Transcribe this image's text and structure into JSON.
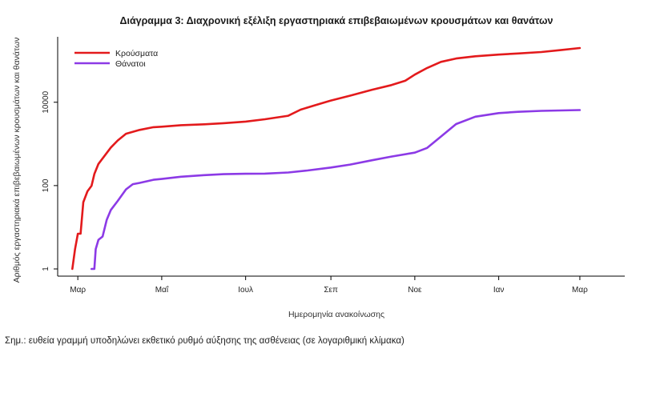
{
  "chart_data": {
    "type": "line",
    "title": "Διάγραμμα 3: Διαχρονική εξέλιξη εργαστηριακά επιβεβαιωμένων κρουσμάτων και θανάτων",
    "xlabel": "Ημερομηνία ανακοίνωσης",
    "ylabel": "Αριθμός εργαστηριακά επιβεβαιωμένων κρουσμάτων και θανάτων",
    "y_scale": "log",
    "ylim": [
      1,
      200000
    ],
    "y_ticks": [
      1,
      100,
      10000
    ],
    "y_tick_labels": [
      "1",
      "100",
      "10000"
    ],
    "xlim": [
      "2020-02-27",
      "2021-03-22"
    ],
    "x_ticks": [
      "2020-03-01",
      "2020-05-01",
      "2020-07-01",
      "2020-09-01",
      "2020-11-01",
      "2021-01-01",
      "2021-03-01"
    ],
    "x_tick_labels": [
      "Μαρ",
      "Μαΐ",
      "Ιουλ",
      "Σεπ",
      "Νοε",
      "Ιαν",
      "Μαρ"
    ],
    "grid": false,
    "legend_position": "top-left",
    "series": [
      {
        "name": "Κρούσματα",
        "color": "#e31a1c",
        "points": [
          [
            "2020-02-26",
            1
          ],
          [
            "2020-02-28",
            3
          ],
          [
            "2020-03-01",
            7
          ],
          [
            "2020-03-03",
            7
          ],
          [
            "2020-03-05",
            40
          ],
          [
            "2020-03-08",
            73
          ],
          [
            "2020-03-11",
            99
          ],
          [
            "2020-03-13",
            190
          ],
          [
            "2020-03-16",
            331
          ],
          [
            "2020-03-20",
            495
          ],
          [
            "2020-03-25",
            821
          ],
          [
            "2020-03-30",
            1212
          ],
          [
            "2020-04-05",
            1755
          ],
          [
            "2020-04-15",
            2170
          ],
          [
            "2020-04-25",
            2517
          ],
          [
            "2020-05-01",
            2591
          ],
          [
            "2020-05-15",
            2810
          ],
          [
            "2020-06-01",
            2952
          ],
          [
            "2020-06-15",
            3148
          ],
          [
            "2020-07-01",
            3432
          ],
          [
            "2020-07-15",
            3910
          ],
          [
            "2020-08-01",
            4737
          ],
          [
            "2020-08-10",
            6632
          ],
          [
            "2020-08-20",
            8381
          ],
          [
            "2020-09-01",
            10998
          ],
          [
            "2020-09-15",
            14400
          ],
          [
            "2020-10-01",
            20000
          ],
          [
            "2020-10-15",
            25802
          ],
          [
            "2020-10-25",
            32752
          ],
          [
            "2020-11-01",
            46000
          ],
          [
            "2020-11-10",
            66637
          ],
          [
            "2020-11-20",
            93000
          ],
          [
            "2020-12-01",
            112000
          ],
          [
            "2020-12-15",
            127000
          ],
          [
            "2021-01-01",
            139000
          ],
          [
            "2021-01-15",
            148000
          ],
          [
            "2021-02-01",
            160000
          ],
          [
            "2021-02-15",
            178000
          ],
          [
            "2021-03-01",
            200000
          ]
        ]
      },
      {
        "name": "Θάνατοι",
        "color": "#8c3ae6",
        "points": [
          [
            "2020-03-11",
            1
          ],
          [
            "2020-03-13",
            1
          ],
          [
            "2020-03-14",
            3
          ],
          [
            "2020-03-16",
            5
          ],
          [
            "2020-03-19",
            6
          ],
          [
            "2020-03-22",
            15
          ],
          [
            "2020-03-25",
            26
          ],
          [
            "2020-03-30",
            43
          ],
          [
            "2020-04-05",
            81
          ],
          [
            "2020-04-10",
            108
          ],
          [
            "2020-04-15",
            116
          ],
          [
            "2020-04-25",
            138
          ],
          [
            "2020-05-01",
            144
          ],
          [
            "2020-05-15",
            163
          ],
          [
            "2020-06-01",
            178
          ],
          [
            "2020-06-15",
            188
          ],
          [
            "2020-07-01",
            192
          ],
          [
            "2020-07-15",
            194
          ],
          [
            "2020-08-01",
            206
          ],
          [
            "2020-08-15",
            230
          ],
          [
            "2020-09-01",
            271
          ],
          [
            "2020-09-15",
            319
          ],
          [
            "2020-10-01",
            406
          ],
          [
            "2020-10-15",
            497
          ],
          [
            "2020-11-01",
            618
          ],
          [
            "2020-11-10",
            800
          ],
          [
            "2020-11-20",
            1500
          ],
          [
            "2020-12-01",
            3000
          ],
          [
            "2020-12-15",
            4500
          ],
          [
            "2021-01-01",
            5500
          ],
          [
            "2021-01-15",
            5900
          ],
          [
            "2021-02-01",
            6200
          ],
          [
            "2021-03-01",
            6500
          ]
        ]
      }
    ]
  },
  "note": "Σημ.: ευθεία γραμμή υποδηλώνει εκθετικό ρυθμό αύξησης της ασθένειας (σε λογαριθμική κλίμακα)"
}
